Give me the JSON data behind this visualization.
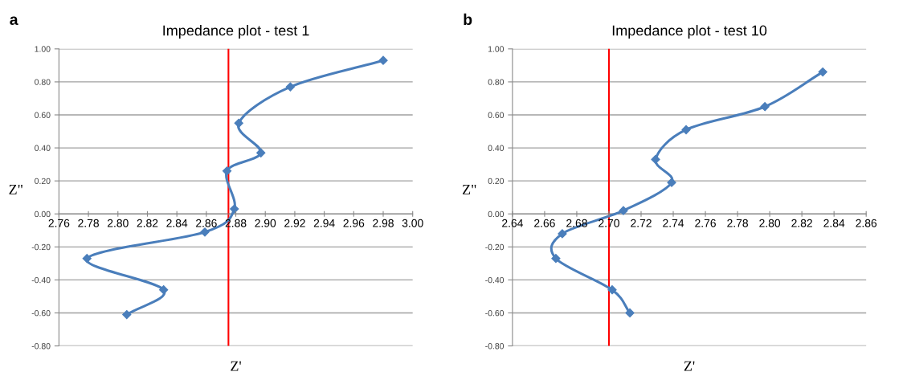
{
  "chart_data": [
    {
      "type": "line",
      "title": "Impedance plot - test 1",
      "xlabel": "Z'",
      "ylabel": "Z\"",
      "annotations": [
        "a"
      ],
      "x": [
        2.98,
        2.917,
        2.882,
        2.897,
        2.874,
        2.879,
        2.859,
        2.779,
        2.831,
        2.806
      ],
      "series": [
        {
          "color": "#4a7ebb",
          "values": [
            0.93,
            0.77,
            0.55,
            0.37,
            0.26,
            0.03,
            -0.11,
            -0.27,
            -0.46,
            -0.61
          ]
        }
      ],
      "xlim": [
        2.76,
        3.0
      ],
      "ylim": [
        -0.8,
        1.0
      ],
      "xticks": [
        {
          "value": 2.76,
          "label": "2.76"
        },
        {
          "value": 2.78,
          "label": "2.78"
        },
        {
          "value": 2.8,
          "label": "2.80"
        },
        {
          "value": 2.82,
          "label": "2.82"
        },
        {
          "value": 2.84,
          "label": "2.84"
        },
        {
          "value": 2.86,
          "label": "2.86"
        },
        {
          "value": 2.88,
          "label": "2.88"
        },
        {
          "value": 2.9,
          "label": "2.90"
        },
        {
          "value": 2.92,
          "label": "2.92"
        },
        {
          "value": 2.94,
          "label": "2.94"
        },
        {
          "value": 2.96,
          "label": "2.96"
        },
        {
          "value": 2.98,
          "label": "2.98"
        },
        {
          "value": 3.0,
          "label": "3.00"
        }
      ],
      "yticks": [
        {
          "value": 1.0,
          "label": "1.00"
        },
        {
          "value": 0.8,
          "label": "0.80"
        },
        {
          "value": 0.6,
          "label": "0.60"
        },
        {
          "value": 0.4,
          "label": "0.40"
        },
        {
          "value": 0.2,
          "label": "0.20"
        },
        {
          "value": 0.0,
          "label": "0.00"
        },
        {
          "value": -0.2,
          "label": "-0.20"
        },
        {
          "value": -0.4,
          "label": "-0.40"
        },
        {
          "value": -0.6,
          "label": "-0.60"
        },
        {
          "value": -0.8,
          "label": "-0.80"
        }
      ],
      "ref_lines": [
        {
          "axis": "x",
          "value": 2.875,
          "color": "#ff0000"
        }
      ],
      "grid": "y",
      "marker": "diamond",
      "line_style": "solid",
      "legend": false
    },
    {
      "type": "line",
      "title": "Impedance plot - test 10",
      "xlabel": "Z'",
      "ylabel": "Z\"",
      "annotations": [
        "b"
      ],
      "x": [
        2.833,
        2.797,
        2.748,
        2.729,
        2.739,
        2.709,
        2.671,
        2.667,
        2.702,
        2.713
      ],
      "series": [
        {
          "color": "#4a7ebb",
          "values": [
            0.86,
            0.65,
            0.51,
            0.33,
            0.19,
            0.02,
            -0.12,
            -0.27,
            -0.46,
            -0.6
          ]
        }
      ],
      "xlim": [
        2.64,
        2.86
      ],
      "ylim": [
        -0.8,
        1.0
      ],
      "xticks": [
        {
          "value": 2.64,
          "label": "2.64"
        },
        {
          "value": 2.66,
          "label": "2.66"
        },
        {
          "value": 2.68,
          "label": "2.68"
        },
        {
          "value": 2.7,
          "label": "2.70"
        },
        {
          "value": 2.72,
          "label": "2.72"
        },
        {
          "value": 2.74,
          "label": "2.74"
        },
        {
          "value": 2.76,
          "label": "2.76"
        },
        {
          "value": 2.78,
          "label": "2.78"
        },
        {
          "value": 2.8,
          "label": "2.80"
        },
        {
          "value": 2.82,
          "label": "2.82"
        },
        {
          "value": 2.84,
          "label": "2.84"
        },
        {
          "value": 2.86,
          "label": "2.86"
        }
      ],
      "yticks": [
        {
          "value": 1.0,
          "label": "1.00"
        },
        {
          "value": 0.8,
          "label": "0.80"
        },
        {
          "value": 0.6,
          "label": "0.60"
        },
        {
          "value": 0.4,
          "label": "0.40"
        },
        {
          "value": 0.2,
          "label": "0.20"
        },
        {
          "value": 0.0,
          "label": "0.00"
        },
        {
          "value": -0.2,
          "label": "-0.20"
        },
        {
          "value": -0.4,
          "label": "-0.40"
        },
        {
          "value": -0.6,
          "label": "-0.60"
        },
        {
          "value": -0.8,
          "label": "-0.80"
        }
      ],
      "ref_lines": [
        {
          "axis": "x",
          "value": 2.7,
          "color": "#ff0000"
        }
      ],
      "grid": "y",
      "marker": "diamond",
      "line_style": "solid",
      "legend": false
    }
  ]
}
